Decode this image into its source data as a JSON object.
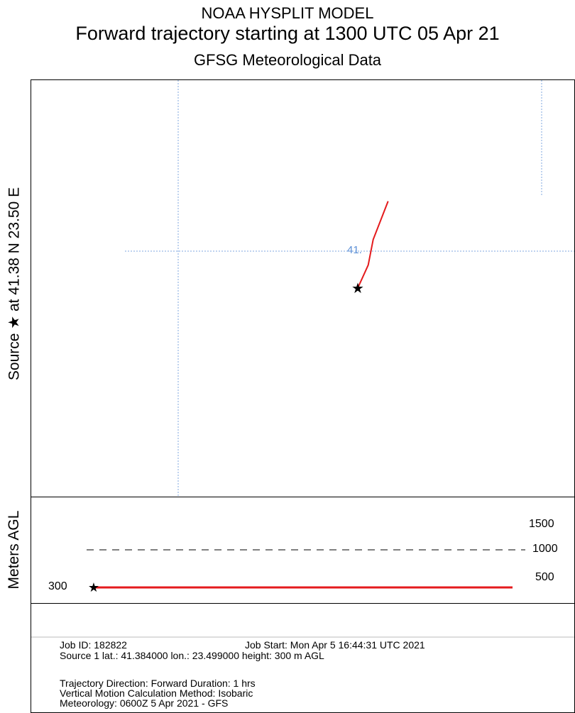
{
  "header": {
    "line1": "NOAA HYSPLIT MODEL",
    "line2": "Forward trajectory starting at 1300 UTC 05 Apr 21",
    "line3": "GFSG Meteorological Data"
  },
  "axis": {
    "map_label": "Source ★  at   41.38 N   23.50 E",
    "vertical_label": "Meters AGL"
  },
  "chart_data": [
    {
      "type": "line",
      "title": "Forward trajectory starting at 1300 UTC 05 Apr 21",
      "panel": "map",
      "grid_label": "41.",
      "source": {
        "lat": 41.384,
        "lon": 23.499
      },
      "series": [
        {
          "color": "#e41a1c",
          "points": [
            {
              "lon": 23.499,
              "lat": 41.384
            },
            {
              "lon": 23.52,
              "lat": 41.42
            },
            {
              "lon": 23.53,
              "lat": 41.46
            },
            {
              "lon": 23.56,
              "lat": 41.52
            }
          ]
        }
      ]
    },
    {
      "type": "line",
      "panel": "vertical",
      "ylabel": "Meters AGL",
      "y_ticks": [
        "1500",
        "1000",
        "500"
      ],
      "start_label": "300",
      "reference_line": 1000,
      "series": [
        {
          "color": "#e41a1c",
          "x_hours": [
            0,
            1
          ],
          "heights_m": [
            300,
            300
          ]
        }
      ]
    }
  ],
  "footer": {
    "job_id": "Job ID: 182822",
    "job_start": "Job Start: Mon Apr  5 16:44:31 UTC 2021",
    "source": "Source 1      lat.: 41.384000    lon.: 23.499000      height: 300 m AGL",
    "direction": "Trajectory Direction: Forward       Duration: 1 hrs",
    "vertical": "Vertical Motion Calculation Method:       Isobaric",
    "meteorology": "Meteorology: 0600Z  5 Apr 2021 - GFS"
  }
}
